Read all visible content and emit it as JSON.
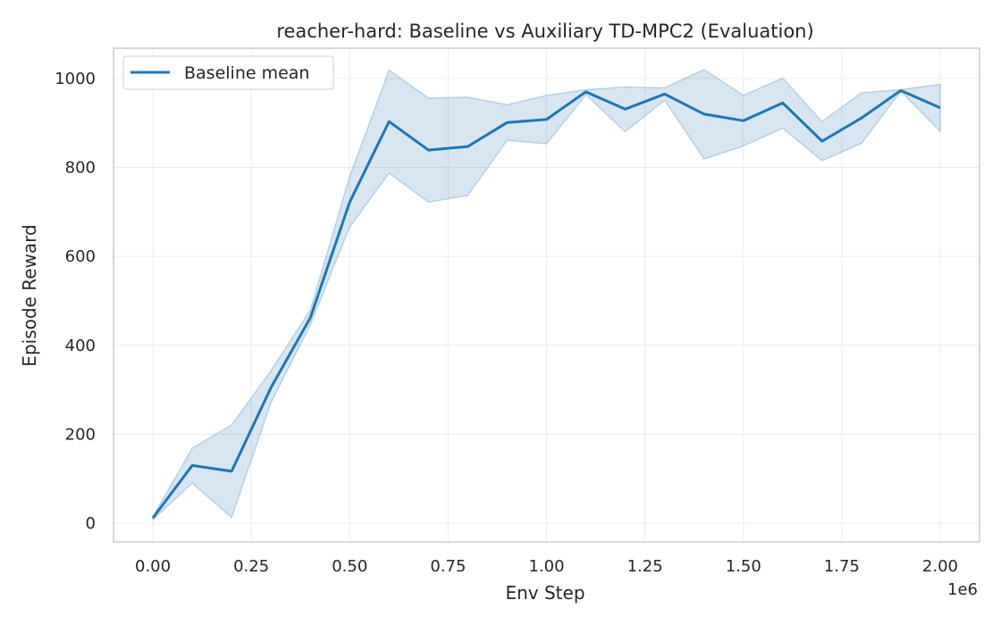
{
  "chart_data": {
    "type": "line",
    "title": "reacher-hard: Baseline vs Auxiliary TD-MPC2 (Evaluation)",
    "xlabel": "Env Step",
    "ylabel": "Episode Reward",
    "x_offset_label": "1e6",
    "xlim": [
      -0.1,
      2.1
    ],
    "ylim": [
      -42,
      1068
    ],
    "x_ticks": [
      0.0,
      0.25,
      0.5,
      0.75,
      1.0,
      1.25,
      1.5,
      1.75,
      2.0
    ],
    "x_tick_labels": [
      "0.00",
      "0.25",
      "0.50",
      "0.75",
      "1.00",
      "1.25",
      "1.50",
      "1.75",
      "2.00"
    ],
    "y_ticks": [
      0,
      200,
      400,
      600,
      800,
      1000
    ],
    "y_tick_labels": [
      "0",
      "200",
      "400",
      "600",
      "800",
      "1000"
    ],
    "grid": true,
    "legend_position": "top-left",
    "series": [
      {
        "name": "Baseline mean",
        "color": "#1f77b4",
        "band_color": "#1f77b4",
        "x": [
          0.0,
          0.1,
          0.2,
          0.3,
          0.4,
          0.5,
          0.6,
          0.7,
          0.8,
          0.9,
          1.0,
          1.1,
          1.2,
          1.3,
          1.4,
          1.5,
          1.6,
          1.7,
          1.8,
          1.9,
          2.0
        ],
        "y": [
          12,
          130,
          117,
          305,
          462,
          722,
          903,
          839,
          847,
          901,
          908,
          970,
          931,
          965,
          920,
          905,
          945,
          859,
          911,
          973,
          934
        ],
        "upper": [
          15,
          169,
          221,
          343,
          480,
          780,
          1019,
          956,
          958,
          941,
          962,
          975,
          981,
          979,
          1020,
          962,
          1001,
          903,
          968,
          975,
          987
        ],
        "lower": [
          8,
          90,
          13,
          271,
          446,
          666,
          787,
          722,
          737,
          861,
          853,
          963,
          880,
          951,
          819,
          848,
          888,
          815,
          854,
          971,
          881
        ]
      }
    ]
  }
}
